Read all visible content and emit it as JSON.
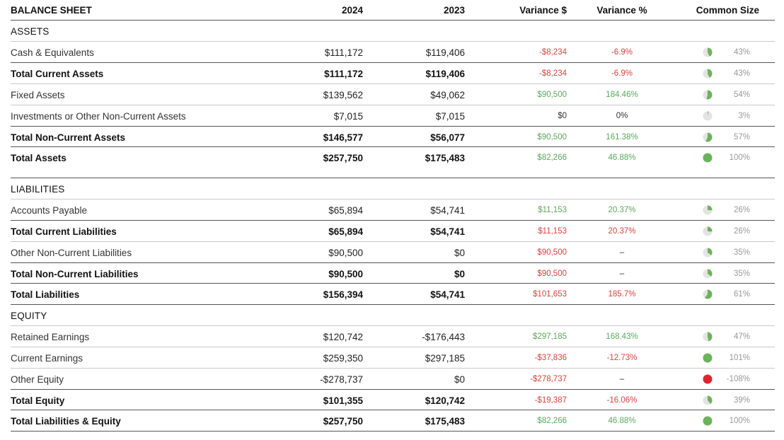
{
  "header": {
    "title": "BALANCE SHEET",
    "col_2024": "2024",
    "col_2023": "2023",
    "variance_dollar": "Variance $",
    "variance_pct": "Variance %",
    "common_size": "Common Size"
  },
  "colors": {
    "positive": "#5aa95a",
    "negative": "#d9423f",
    "neutral": "#333333",
    "pie_fill": "#6bb35a",
    "pie_bg": "#e3e3e3",
    "pie_negative": "#e0242f"
  },
  "sections": [
    {
      "title": "ASSETS",
      "rows": [
        {
          "label": "Cash & Equivalents",
          "bold": false,
          "y2024": "$111,172",
          "y2023": "$119,406",
          "var_d": "-$8,234",
          "var_p": "-6.9%",
          "tone": "neg",
          "ptone": "neg",
          "common": "43%",
          "pct": 43
        },
        {
          "label": "Total Current Assets",
          "bold": true,
          "y2024": "$111,172",
          "y2023": "$119,406",
          "var_d": "-$8,234",
          "var_p": "-6.9%",
          "tone": "neg",
          "ptone": "neg",
          "common": "43%",
          "pct": 43
        },
        {
          "label": "Fixed Assets",
          "bold": false,
          "y2024": "$139,562",
          "y2023": "$49,062",
          "var_d": "$90,500",
          "var_p": "184.46%",
          "tone": "pos",
          "ptone": "pos",
          "common": "54%",
          "pct": 54
        },
        {
          "label": "Investments or Other Non-Current Assets",
          "bold": false,
          "y2024": "$7,015",
          "y2023": "$7,015",
          "var_d": "$0",
          "var_p": "0%",
          "tone": "neu",
          "ptone": "neu",
          "common": "3%",
          "pct": 3
        },
        {
          "label": "Total Non-Current Assets",
          "bold": true,
          "y2024": "$146,577",
          "y2023": "$56,077",
          "var_d": "$90,500",
          "var_p": "161.38%",
          "tone": "pos",
          "ptone": "pos",
          "common": "57%",
          "pct": 57
        },
        {
          "label": "Total Assets",
          "bold": true,
          "y2024": "$257,750",
          "y2023": "$175,483",
          "var_d": "$82,266",
          "var_p": "46.88%",
          "tone": "pos",
          "ptone": "pos",
          "common": "100%",
          "pct": 100
        }
      ]
    },
    {
      "title": "LIABILITIES",
      "rows": [
        {
          "label": "Accounts Payable",
          "bold": false,
          "y2024": "$65,894",
          "y2023": "$54,741",
          "var_d": "$11,153",
          "var_p": "20.37%",
          "tone": "pos",
          "ptone": "pos",
          "common": "26%",
          "pct": 26
        },
        {
          "label": "Total Current Liabilities",
          "bold": true,
          "y2024": "$65,894",
          "y2023": "$54,741",
          "var_d": "$11,153",
          "var_p": "20.37%",
          "tone": "neg",
          "ptone": "neg",
          "common": "26%",
          "pct": 26
        },
        {
          "label": "Other Non-Current Liabilities",
          "bold": false,
          "y2024": "$90,500",
          "y2023": "$0",
          "var_d": "$90,500",
          "var_p": "–",
          "tone": "neg",
          "ptone": "neu",
          "common": "35%",
          "pct": 35
        },
        {
          "label": "Total Non-Current Liabilities",
          "bold": true,
          "y2024": "$90,500",
          "y2023": "$0",
          "var_d": "$90,500",
          "var_p": "–",
          "tone": "neg",
          "ptone": "neu",
          "common": "35%",
          "pct": 35
        },
        {
          "label": "Total Liabilities",
          "bold": true,
          "y2024": "$156,394",
          "y2023": "$54,741",
          "var_d": "$101,653",
          "var_p": "185.7%",
          "tone": "neg",
          "ptone": "neg",
          "common": "61%",
          "pct": 61
        }
      ]
    },
    {
      "title": "EQUITY",
      "rows": [
        {
          "label": "Retained Earnings",
          "bold": false,
          "y2024": "$120,742",
          "y2023": "-$176,443",
          "var_d": "$297,185",
          "var_p": "168.43%",
          "tone": "pos",
          "ptone": "pos",
          "common": "47%",
          "pct": 47
        },
        {
          "label": "Current Earnings",
          "bold": false,
          "y2024": "$259,350",
          "y2023": "$297,185",
          "var_d": "-$37,836",
          "var_p": "-12.73%",
          "tone": "neg",
          "ptone": "neg",
          "common": "101%",
          "pct": 101
        },
        {
          "label": "Other Equity",
          "bold": false,
          "y2024": "-$278,737",
          "y2023": "$0",
          "var_d": "-$278,737",
          "var_p": "–",
          "tone": "neg",
          "ptone": "neu",
          "common": "-108%",
          "pct": -108
        },
        {
          "label": "Total Equity",
          "bold": true,
          "y2024": "$101,355",
          "y2023": "$120,742",
          "var_d": "-$19,387",
          "var_p": "-16.06%",
          "tone": "neg",
          "ptone": "neg",
          "common": "39%",
          "pct": 39
        },
        {
          "label": "Total Liabilities & Equity",
          "bold": true,
          "y2024": "$257,750",
          "y2023": "$175,483",
          "var_d": "$82,266",
          "var_p": "46.88%",
          "tone": "pos",
          "ptone": "pos",
          "common": "100%",
          "pct": 100
        }
      ]
    }
  ]
}
